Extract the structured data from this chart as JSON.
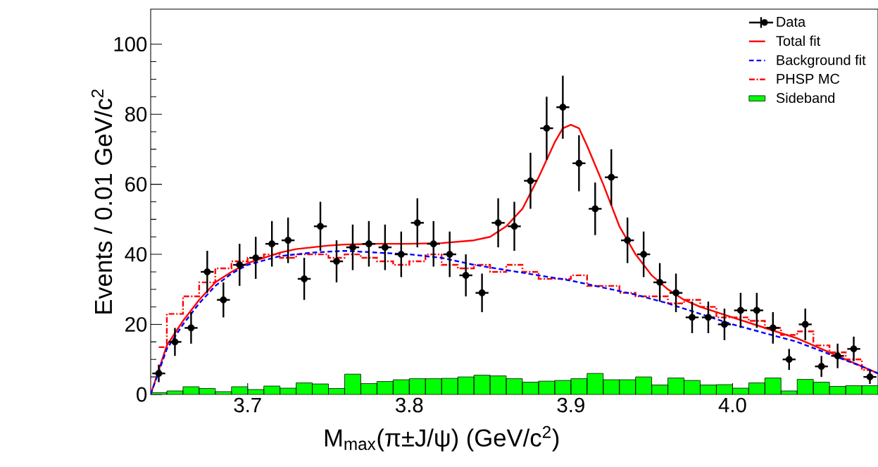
{
  "chart_data": {
    "type": "scatter",
    "xlabel": "M$_{max}$(π±J/ψ) (GeV/c$^{2}$)",
    "ylabel": "Events / 0.01 GeV/c$^{2}$",
    "xlim": [
      3.64,
      4.09
    ],
    "ylim": [
      0,
      110
    ],
    "xticks": [
      3.7,
      3.8,
      3.9,
      {
        "value": 4.0,
        "label": "4.0"
      }
    ],
    "yticks": [
      0,
      20,
      40,
      60,
      80,
      100
    ],
    "legend": "top right",
    "grid": false,
    "series": [
      {
        "name": "Data",
        "marker": "circle",
        "color": "#000000",
        "x": [
          3.645,
          3.655,
          3.665,
          3.675,
          3.685,
          3.695,
          3.705,
          3.715,
          3.725,
          3.735,
          3.745,
          3.755,
          3.765,
          3.775,
          3.785,
          3.795,
          3.805,
          3.815,
          3.825,
          3.835,
          3.845,
          3.855,
          3.865,
          3.875,
          3.885,
          3.895,
          3.905,
          3.915,
          3.925,
          3.935,
          3.945,
          3.955,
          3.965,
          3.975,
          3.985,
          3.995,
          4.005,
          4.015,
          4.025,
          4.035,
          4.045,
          4.055,
          4.065,
          4.075,
          4.085
        ],
        "values": [
          6,
          15,
          19,
          35,
          27,
          37,
          39,
          43,
          44,
          33,
          48,
          38,
          42,
          43,
          42,
          40,
          49,
          43,
          40,
          34,
          29,
          49,
          48,
          61,
          76,
          82,
          66,
          53,
          62,
          44,
          40,
          32,
          29,
          22,
          22,
          20,
          24,
          24,
          19,
          10,
          20,
          8,
          11,
          13,
          5
        ],
        "errors": [
          2.5,
          4,
          4.5,
          6,
          5,
          6,
          6,
          6.5,
          6.5,
          6,
          7,
          6,
          6.5,
          6.5,
          6.5,
          6.5,
          7,
          6.5,
          6.5,
          6,
          5.5,
          7,
          7,
          8,
          9,
          9,
          8,
          7.5,
          8,
          6.5,
          6.5,
          5.5,
          5.5,
          4.5,
          4.5,
          4.5,
          5,
          5,
          4.5,
          3,
          4.5,
          3,
          3.5,
          3.5,
          2
        ],
        "xerrors": [
          0.004,
          0.004,
          0.004,
          0.004,
          0.004,
          0.004,
          0.004,
          0.004,
          0.004,
          0.004,
          0.004,
          0.004,
          0.004,
          0.004,
          0.004,
          0.004,
          0.004,
          0.004,
          0.004,
          0.004,
          0.004,
          0.004,
          0.004,
          0.004,
          0.004,
          0.004,
          0.004,
          0.004,
          0.004,
          0.004,
          0.004,
          0.004,
          0.004,
          0.004,
          0.004,
          0.004,
          0.004,
          0.004,
          0.004,
          0.004,
          0.004,
          0.004,
          0.004,
          0.004,
          0.004
        ]
      },
      {
        "name": "Total fit",
        "type": "line",
        "marker": "none",
        "color": "#ff0000",
        "line_style": "solid",
        "x": [
          3.64,
          3.65,
          3.66,
          3.67,
          3.68,
          3.69,
          3.7,
          3.71,
          3.72,
          3.73,
          3.74,
          3.75,
          3.76,
          3.78,
          3.8,
          3.82,
          3.84,
          3.85,
          3.86,
          3.87,
          3.88,
          3.89,
          3.895,
          3.9,
          3.905,
          3.91,
          3.92,
          3.93,
          3.94,
          3.95,
          3.96,
          3.97,
          3.98,
          3.99,
          4.0,
          4.02,
          4.04,
          4.06,
          4.08,
          4.09
        ],
        "values": [
          0,
          14,
          21,
          27,
          32,
          35,
          37.5,
          39,
          40.5,
          41.5,
          42,
          42.5,
          42.8,
          43,
          43,
          43.2,
          44,
          45,
          48,
          53,
          62,
          72,
          76,
          77,
          76,
          71,
          60,
          48,
          40,
          34,
          30,
          27,
          25,
          23.5,
          22,
          19,
          16,
          12,
          8,
          6
        ]
      },
      {
        "name": "Background fit",
        "type": "line",
        "marker": "none",
        "color": "#0000ff",
        "line_style": "dashed",
        "x": [
          3.64,
          3.65,
          3.66,
          3.67,
          3.68,
          3.69,
          3.7,
          3.72,
          3.74,
          3.76,
          3.78,
          3.8,
          3.82,
          3.84,
          3.86,
          3.88,
          3.9,
          3.92,
          3.94,
          3.96,
          3.98,
          4.0,
          4.02,
          4.04,
          4.06,
          4.08,
          4.09
        ],
        "values": [
          0,
          13,
          20,
          26,
          31,
          34.5,
          37,
          39.5,
          40.5,
          41,
          40.5,
          40,
          39,
          37,
          35.5,
          34,
          32.5,
          30.5,
          28.5,
          26,
          23,
          20,
          17.5,
          15,
          11.5,
          8,
          6
        ]
      },
      {
        "name": "PHSP MC",
        "type": "step",
        "marker": "none",
        "color": "#ff0000",
        "line_style": "dashdot",
        "x": [
          3.645,
          3.655,
          3.665,
          3.675,
          3.685,
          3.695,
          3.705,
          3.715,
          3.725,
          3.735,
          3.745,
          3.755,
          3.765,
          3.775,
          3.785,
          3.795,
          3.805,
          3.815,
          3.825,
          3.835,
          3.845,
          3.855,
          3.865,
          3.875,
          3.885,
          3.895,
          3.905,
          3.915,
          3.925,
          3.935,
          3.945,
          3.955,
          3.965,
          3.975,
          3.985,
          3.995,
          4.005,
          4.015,
          4.025,
          4.035,
          4.045,
          4.055,
          4.065,
          4.075,
          4.085
        ],
        "values": [
          13.5,
          23,
          28,
          32,
          36,
          38,
          39,
          40,
          39,
          40,
          40,
          39,
          40,
          39,
          38,
          37,
          38,
          40,
          37,
          36,
          37,
          35,
          37,
          35,
          33,
          33,
          34,
          31,
          31,
          29,
          28,
          28,
          26,
          27,
          25,
          22,
          22,
          21,
          19,
          17,
          18,
          14,
          12,
          10,
          7
        ]
      },
      {
        "name": "Sideband",
        "type": "histogram",
        "color": "#00ff00",
        "bins": [
          3.64,
          3.65,
          3.66,
          3.67,
          3.68,
          3.69,
          3.7,
          3.71,
          3.72,
          3.73,
          3.74,
          3.75,
          3.76,
          3.77,
          3.78,
          3.79,
          3.8,
          3.81,
          3.82,
          3.83,
          3.84,
          3.85,
          3.86,
          3.87,
          3.88,
          3.89,
          3.9,
          3.91,
          3.92,
          3.93,
          3.94,
          3.95,
          3.96,
          3.97,
          3.98,
          3.99,
          4.0,
          4.01,
          4.02,
          4.03,
          4.04,
          4.05,
          4.06,
          4.07,
          4.08,
          4.09
        ],
        "values": [
          0.5,
          1,
          2.2,
          1.7,
          0.8,
          2.2,
          1.4,
          2.4,
          1.8,
          3.3,
          3,
          1.7,
          5.8,
          3.1,
          3.7,
          4.2,
          4.5,
          4.5,
          4.6,
          5,
          5.5,
          5.3,
          4.5,
          3.5,
          3.8,
          4,
          4.5,
          6,
          4.2,
          4.2,
          5,
          2.7,
          4.7,
          4,
          2.7,
          2.8,
          1.8,
          3.3,
          4.7,
          1,
          4.3,
          3.5,
          2.3,
          2.5,
          2.5
        ]
      }
    ]
  }
}
